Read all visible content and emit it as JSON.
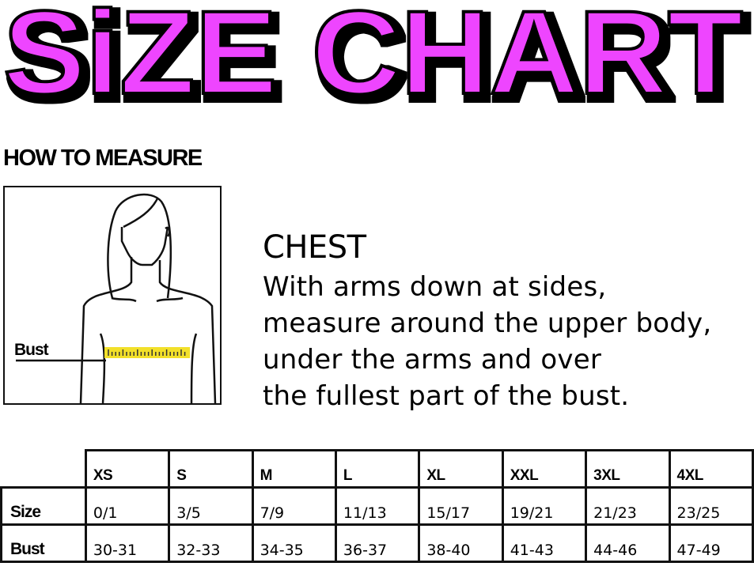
{
  "title": "SiZE CHART",
  "accent_color": "#EE44FF",
  "how_to_measure": "HOW TO MEASURE",
  "figure": {
    "label": "Bust",
    "tape_color": "#F2E02A"
  },
  "chest": {
    "title": "CHEST",
    "lines": [
      "With arms down at sides,",
      "measure around the upper body,",
      "under the arms and over",
      "the fullest part of the bust."
    ]
  },
  "table": {
    "columns": [
      "XS",
      "S",
      "M",
      "L",
      "XL",
      "XXL",
      "3XL",
      "4XL"
    ],
    "rows": [
      {
        "label": "Size",
        "values": [
          "0/1",
          "3/5",
          "7/9",
          "11/13",
          "15/17",
          "19/21",
          "21/23",
          "23/25"
        ]
      },
      {
        "label": "Bust",
        "values": [
          "30-31",
          "32-33",
          "34-35",
          "36-37",
          "38-40",
          "41-43",
          "44-46",
          "47-49"
        ]
      }
    ]
  }
}
